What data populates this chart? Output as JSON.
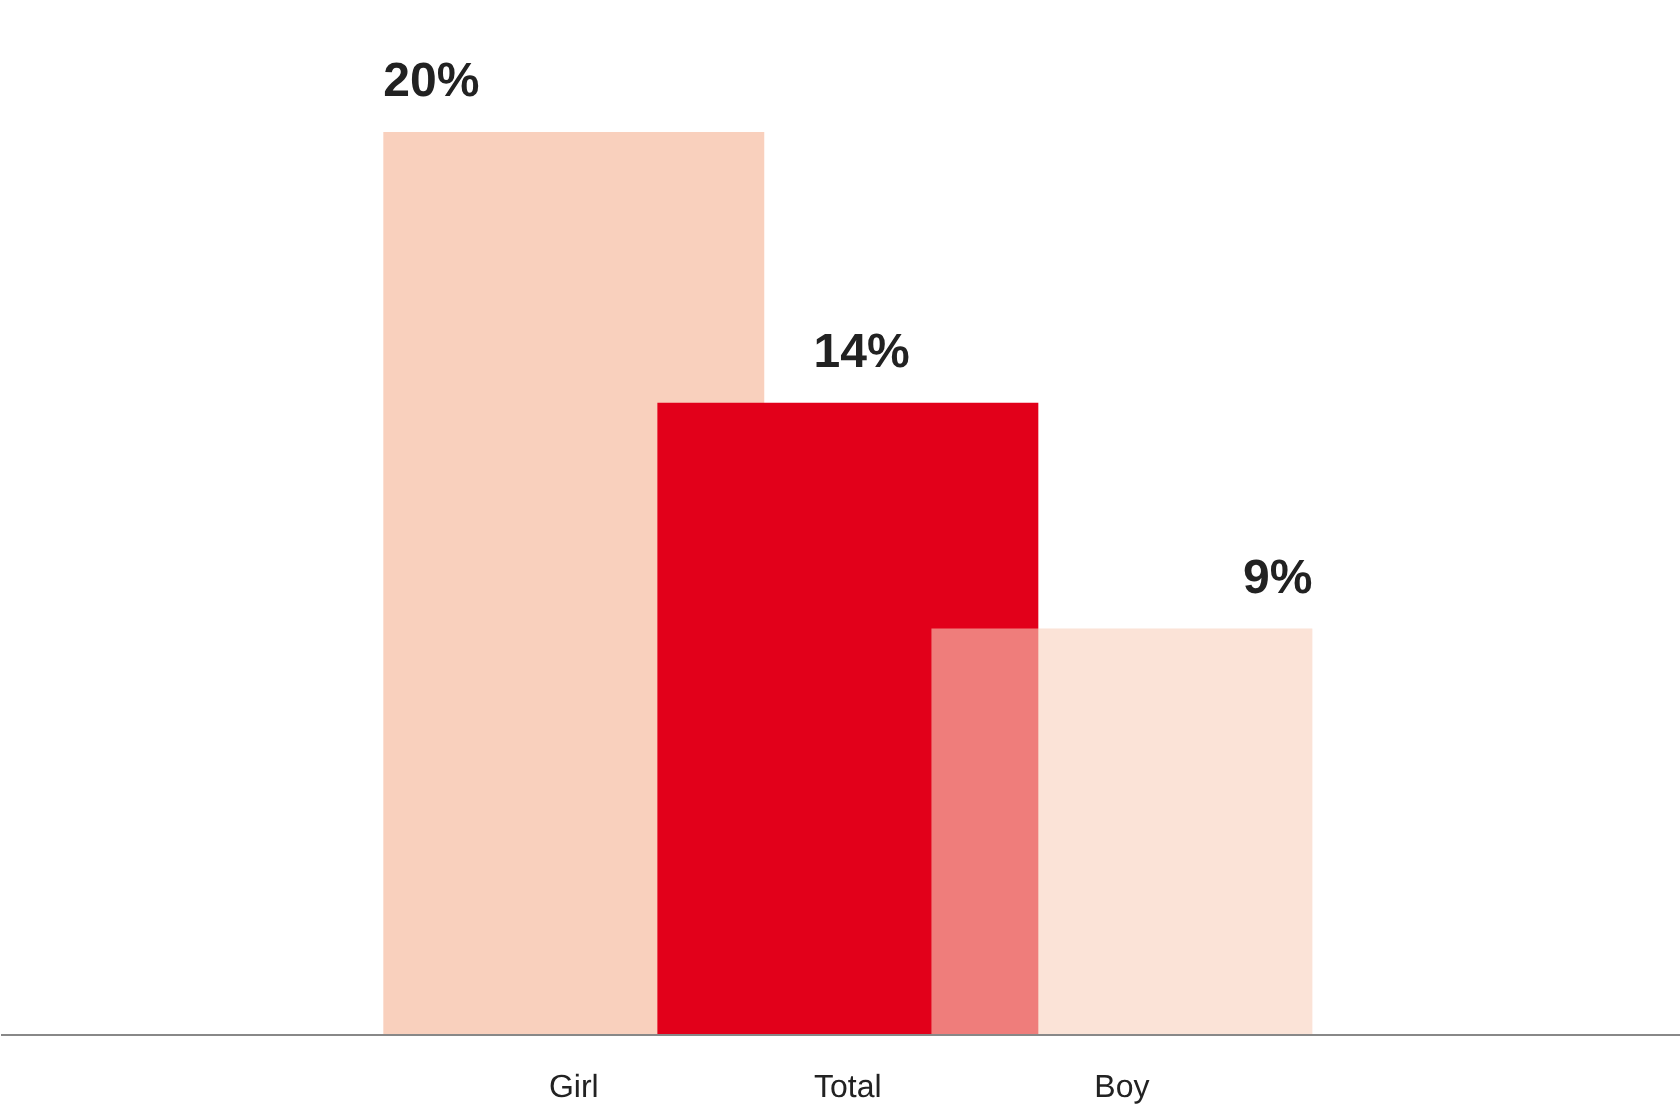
{
  "chart_data": {
    "type": "bar",
    "categories": [
      "Girl",
      "Total",
      "Boy"
    ],
    "values": [
      20,
      14,
      9
    ],
    "colors": [
      "#f9d0bd",
      "#e2001a",
      "#f9d0bd"
    ],
    "value_labels": [
      "20%",
      "14%",
      "9%"
    ],
    "grid": false
  }
}
